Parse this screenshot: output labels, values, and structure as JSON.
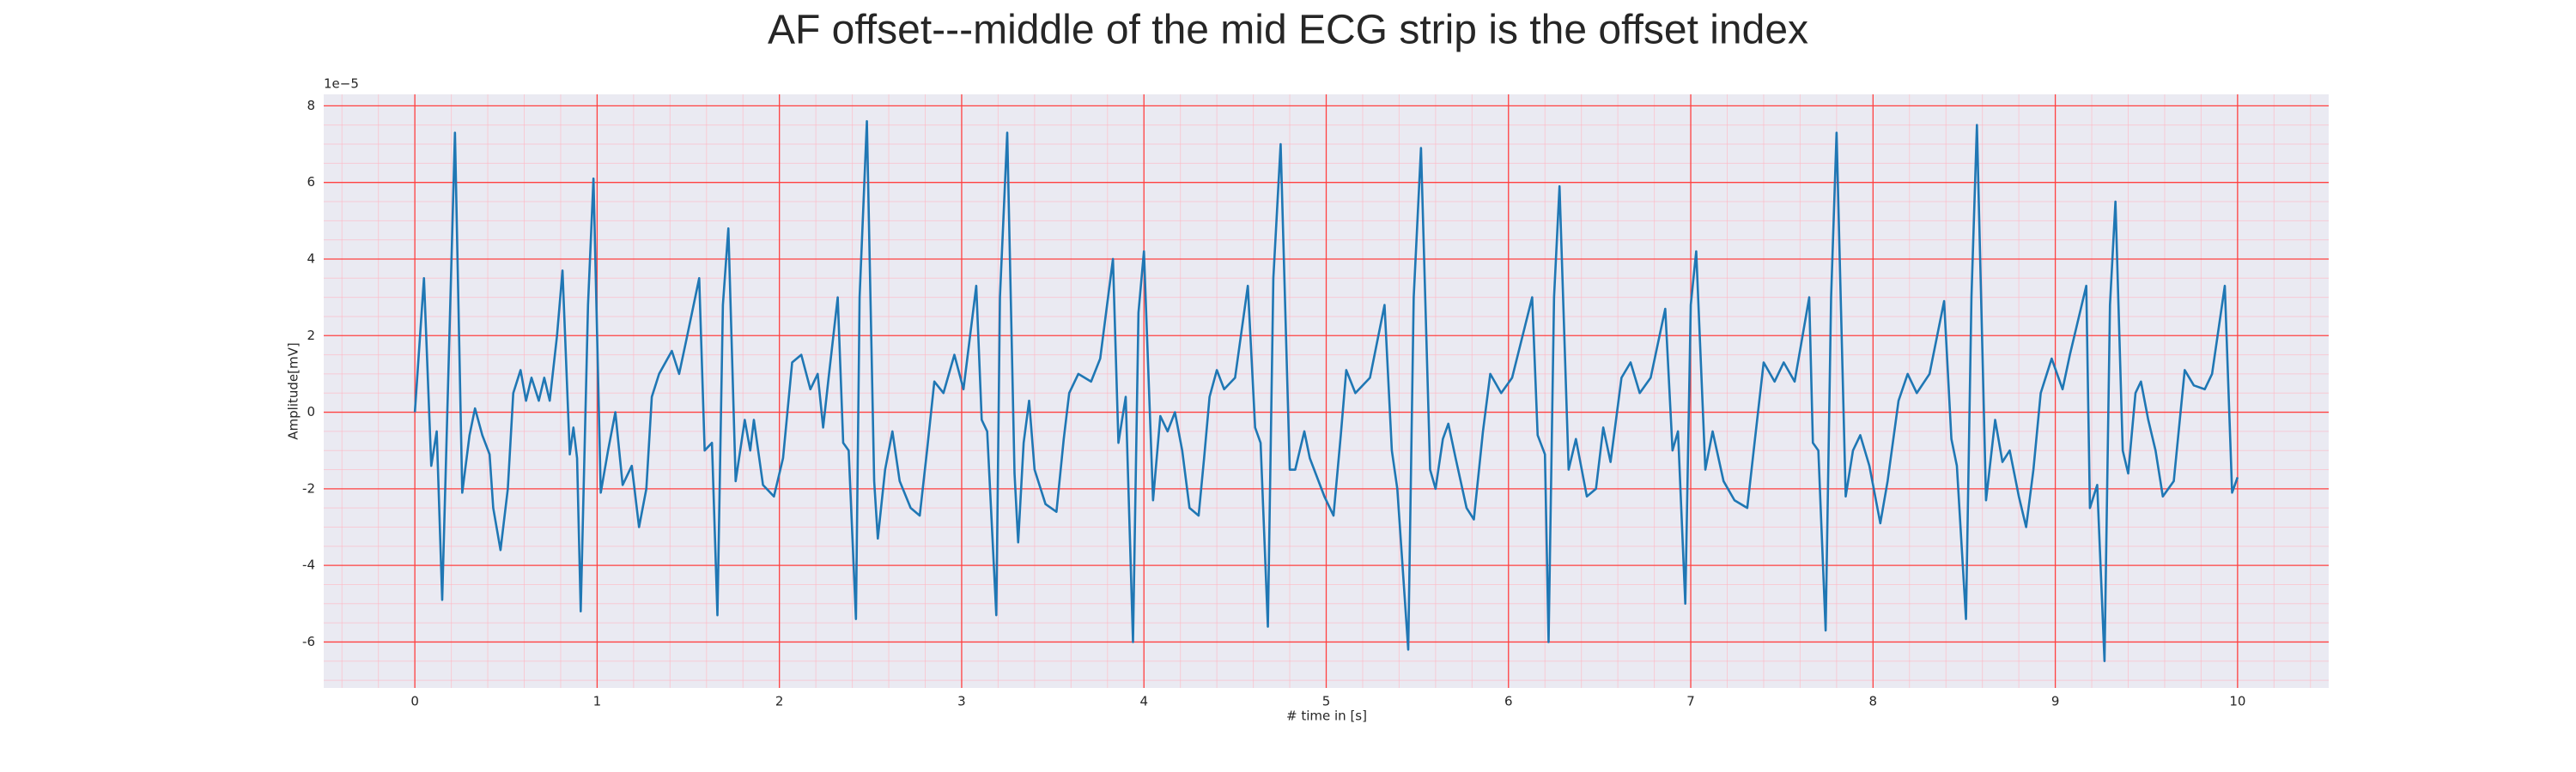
{
  "chart_data": {
    "type": "line",
    "title": "AF offset---middle of the mid ECG strip is the offset index",
    "x_label": "# time in [s]",
    "y_label": "Amplitude[mV]",
    "y_offset_label": "1e−5",
    "color": "#1f77b4",
    "grid": true,
    "minor_grid": true,
    "xlim": [
      -0.5,
      10.5
    ],
    "ylim": [
      -7.2,
      8.3
    ],
    "xticks": [
      0,
      1,
      2,
      3,
      4,
      5,
      6,
      7,
      8,
      9,
      10
    ],
    "yticks": [
      -6,
      -4,
      -2,
      0,
      2,
      4,
      6,
      8
    ],
    "x": [
      0,
      0.05,
      0.09,
      0.12,
      0.15,
      0.22,
      0.26,
      0.3,
      0.33,
      0.37,
      0.41,
      0.43,
      0.47,
      0.51,
      0.54,
      0.58,
      0.61,
      0.64,
      0.68,
      0.71,
      0.74,
      0.78,
      0.81,
      0.85,
      0.87,
      0.89,
      0.91,
      0.95,
      0.98,
      1.02,
      1.06,
      1.1,
      1.14,
      1.19,
      1.23,
      1.27,
      1.3,
      1.34,
      1.41,
      1.45,
      1.49,
      1.56,
      1.59,
      1.63,
      1.66,
      1.69,
      1.72,
      1.76,
      1.81,
      1.84,
      1.86,
      1.91,
      1.97,
      2.02,
      2.07,
      2.12,
      2.17,
      2.21,
      2.24,
      2.27,
      2.32,
      2.35,
      2.38,
      2.42,
      2.44,
      2.48,
      2.52,
      2.54,
      2.58,
      2.62,
      2.66,
      2.72,
      2.77,
      2.81,
      2.85,
      2.9,
      2.96,
      3.01,
      3.08,
      3.11,
      3.14,
      3.19,
      3.21,
      3.25,
      3.29,
      3.31,
      3.34,
      3.37,
      3.4,
      3.46,
      3.52,
      3.56,
      3.59,
      3.64,
      3.71,
      3.76,
      3.83,
      3.86,
      3.9,
      3.94,
      3.97,
      4.0,
      4.05,
      4.09,
      4.13,
      4.17,
      4.21,
      4.25,
      4.3,
      4.33,
      4.36,
      4.4,
      4.44,
      4.5,
      4.57,
      4.61,
      4.64,
      4.68,
      4.71,
      4.75,
      4.8,
      4.83,
      4.88,
      4.91,
      4.99,
      5.04,
      5.08,
      5.11,
      5.16,
      5.24,
      5.32,
      5.36,
      5.39,
      5.45,
      5.48,
      5.52,
      5.57,
      5.6,
      5.64,
      5.67,
      5.71,
      5.77,
      5.81,
      5.86,
      5.9,
      5.96,
      6.02,
      6.13,
      6.16,
      6.2,
      6.22,
      6.25,
      6.28,
      6.33,
      6.37,
      6.43,
      6.48,
      6.52,
      6.56,
      6.62,
      6.67,
      6.72,
      6.78,
      6.86,
      6.9,
      6.93,
      6.97,
      7.0,
      7.03,
      7.08,
      7.12,
      7.18,
      7.24,
      7.31,
      7.35,
      7.4,
      7.46,
      7.51,
      7.57,
      7.65,
      7.67,
      7.7,
      7.74,
      7.77,
      7.8,
      7.85,
      7.89,
      7.93,
      7.98,
      8.04,
      8.08,
      8.14,
      8.19,
      8.24,
      8.31,
      8.39,
      8.43,
      8.46,
      8.51,
      8.54,
      8.57,
      8.62,
      8.67,
      8.71,
      8.75,
      8.8,
      8.84,
      8.88,
      8.92,
      8.98,
      9.04,
      9.08,
      9.17,
      9.19,
      9.23,
      9.27,
      9.3,
      9.33,
      9.37,
      9.4,
      9.44,
      9.47,
      9.51,
      9.55,
      9.59,
      9.65,
      9.71,
      9.76,
      9.82,
      9.86,
      9.93,
      9.97,
      10.0
    ],
    "values": [
      0,
      3.5,
      -1.4,
      -0.5,
      -4.9,
      7.3,
      -2.1,
      -0.6,
      0.1,
      -0.6,
      -1.1,
      -2.5,
      -3.6,
      -2.0,
      0.5,
      1.1,
      0.3,
      0.9,
      0.3,
      0.9,
      0.3,
      2.0,
      3.7,
      -1.1,
      -0.4,
      -1.2,
      -5.2,
      2.8,
      6.1,
      -2.1,
      -1.0,
      0.0,
      -1.9,
      -1.4,
      -3.0,
      -2.0,
      0.4,
      1.0,
      1.6,
      1.0,
      1.9,
      3.5,
      -1.0,
      -0.8,
      -5.3,
      2.8,
      4.8,
      -1.8,
      -0.2,
      -1.0,
      -0.2,
      -1.9,
      -2.2,
      -1.2,
      1.3,
      1.5,
      0.6,
      1.0,
      -0.4,
      0.9,
      3.0,
      -0.8,
      -1.0,
      -5.4,
      3.0,
      7.6,
      -1.8,
      -3.3,
      -1.5,
      -0.5,
      -1.8,
      -2.5,
      -2.7,
      -1.0,
      0.8,
      0.5,
      1.5,
      0.6,
      3.3,
      -0.2,
      -0.5,
      -5.3,
      3.0,
      7.3,
      -1.6,
      -3.4,
      -0.8,
      0.3,
      -1.5,
      -2.4,
      -2.6,
      -0.7,
      0.5,
      1.0,
      0.8,
      1.4,
      4.0,
      -0.8,
      0.4,
      -6.0,
      2.6,
      4.2,
      -2.3,
      -0.1,
      -0.5,
      0.0,
      -1.0,
      -2.5,
      -2.7,
      -1.2,
      0.4,
      1.1,
      0.6,
      0.9,
      3.3,
      -0.4,
      -0.8,
      -5.6,
      3.5,
      7.0,
      -1.5,
      -1.5,
      -0.5,
      -1.2,
      -2.2,
      -2.7,
      -0.6,
      1.1,
      0.5,
      0.9,
      2.8,
      -1.0,
      -2.0,
      -6.2,
      3.0,
      6.9,
      -1.5,
      -2.0,
      -0.7,
      -0.3,
      -1.2,
      -2.5,
      -2.8,
      -0.5,
      1.0,
      0.5,
      0.9,
      3.0,
      -0.6,
      -1.1,
      -6.0,
      3.0,
      5.9,
      -1.5,
      -0.7,
      -2.2,
      -2.0,
      -0.4,
      -1.3,
      0.9,
      1.3,
      0.5,
      0.9,
      2.7,
      -1.0,
      -0.5,
      -5.0,
      2.8,
      4.2,
      -1.5,
      -0.5,
      -1.8,
      -2.3,
      -2.5,
      -0.8,
      1.3,
      0.8,
      1.3,
      0.8,
      3.0,
      -0.8,
      -1.0,
      -5.7,
      3.0,
      7.3,
      -2.2,
      -1.0,
      -0.6,
      -1.4,
      -2.9,
      -1.8,
      0.3,
      1.0,
      0.5,
      1.0,
      2.9,
      -0.7,
      -1.4,
      -5.4,
      3.0,
      7.5,
      -2.3,
      -0.2,
      -1.3,
      -1.0,
      -2.2,
      -3.0,
      -1.5,
      0.5,
      1.4,
      0.6,
      1.5,
      3.3,
      -2.5,
      -1.9,
      -6.5,
      2.8,
      5.5,
      -1.0,
      -1.6,
      0.5,
      0.8,
      -0.2,
      -1.0,
      -2.2,
      -1.8,
      1.1,
      0.7,
      0.6,
      1.0,
      3.3,
      -2.1,
      -1.7
    ]
  }
}
